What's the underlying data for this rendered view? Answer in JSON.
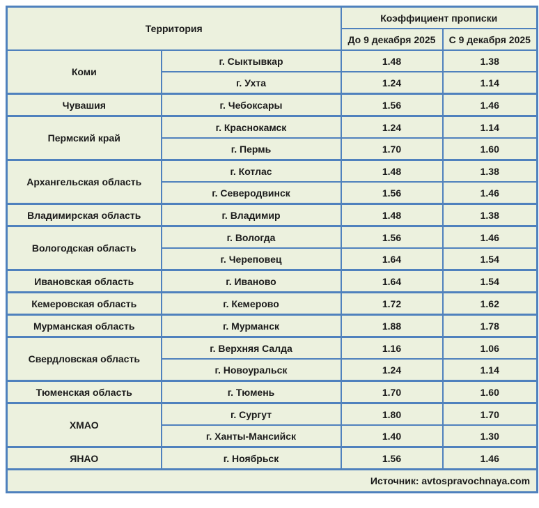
{
  "colors": {
    "border": "#4f81bd",
    "background": "#ecf1de",
    "text": "#1b1b1b",
    "page": "#ffffff"
  },
  "chart_data": {
    "type": "table",
    "title": "Коэффициент прописки",
    "header": {
      "territory": "Территория",
      "coefficient_group": "Коэффициент прописки",
      "col_before": "До 9 декабря 2025",
      "col_after": "С 9 декабря 2025"
    },
    "groups": [
      {
        "region": "Коми",
        "rows": [
          {
            "city": "г. Сыктывкар",
            "before": "1.48",
            "after": "1.38"
          },
          {
            "city": "г. Ухта",
            "before": "1.24",
            "after": "1.14"
          }
        ]
      },
      {
        "region": "Чувашия",
        "rows": [
          {
            "city": "г. Чебоксары",
            "before": "1.56",
            "after": "1.46"
          }
        ]
      },
      {
        "region": "Пермский край",
        "rows": [
          {
            "city": "г. Краснокамск",
            "before": "1.24",
            "after": "1.14"
          },
          {
            "city": "г. Пермь",
            "before": "1.70",
            "after": "1.60"
          }
        ]
      },
      {
        "region": "Архангельская область",
        "rows": [
          {
            "city": "г. Котлас",
            "before": "1.48",
            "after": "1.38"
          },
          {
            "city": "г. Северодвинск",
            "before": "1.56",
            "after": "1.46"
          }
        ]
      },
      {
        "region": "Владимирская область",
        "rows": [
          {
            "city": "г. Владимир",
            "before": "1.48",
            "after": "1.38"
          }
        ]
      },
      {
        "region": "Вологодская область",
        "rows": [
          {
            "city": "г. Вологда",
            "before": "1.56",
            "after": "1.46"
          },
          {
            "city": "г. Череповец",
            "before": "1.64",
            "after": "1.54"
          }
        ]
      },
      {
        "region": "Ивановская область",
        "rows": [
          {
            "city": "г. Иваново",
            "before": "1.64",
            "after": "1.54"
          }
        ]
      },
      {
        "region": "Кемеровская область",
        "rows": [
          {
            "city": "г. Кемерово",
            "before": "1.72",
            "after": "1.62"
          }
        ]
      },
      {
        "region": "Мурманская область",
        "rows": [
          {
            "city": "г. Мурманск",
            "before": "1.88",
            "after": "1.78"
          }
        ]
      },
      {
        "region": "Свердловская область",
        "rows": [
          {
            "city": "г. Верхняя Салда",
            "before": "1.16",
            "after": "1.06"
          },
          {
            "city": "г. Новоуральск",
            "before": "1.24",
            "after": "1.14"
          }
        ]
      },
      {
        "region": "Тюменская область",
        "rows": [
          {
            "city": "г. Тюмень",
            "before": "1.70",
            "after": "1.60"
          }
        ]
      },
      {
        "region": "ХМАО",
        "rows": [
          {
            "city": "г. Сургут",
            "before": "1.80",
            "after": "1.70"
          },
          {
            "city": "г. Ханты-Мансийск",
            "before": "1.40",
            "after": "1.30"
          }
        ]
      },
      {
        "region": "ЯНАО",
        "rows": [
          {
            "city": "г. Ноябрьск",
            "before": "1.56",
            "after": "1.46"
          }
        ]
      }
    ],
    "footer": "Источник: avtospravochnaya.com"
  }
}
